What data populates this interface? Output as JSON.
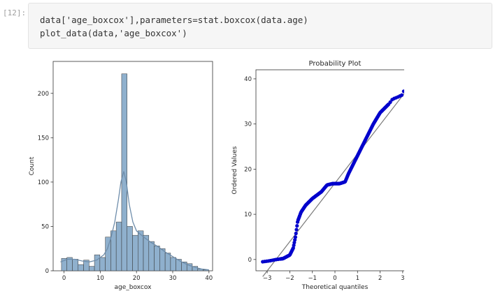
{
  "cell": {
    "prompt": "[12]:",
    "code_lines": [
      "data['age_boxcox'],parameters=stat.boxcox(data.age)",
      "plot_data(data,'age_boxcox')"
    ]
  },
  "colors": {
    "bar_fill": "#8fb0cd",
    "bar_edge": "#333333",
    "kde": "#6e8dab",
    "points": "#0000cc",
    "fit_line": "#7a7a7a"
  },
  "chart_data": [
    {
      "type": "bar",
      "title": "",
      "xlabel": "age_boxcox",
      "ylabel": "Count",
      "xlim": [
        -3,
        41
      ],
      "ylim": [
        0,
        236
      ],
      "xticks": [
        0,
        10,
        20,
        30,
        40
      ],
      "yticks": [
        0,
        50,
        100,
        150,
        200
      ],
      "bin_edges": [
        -0.7,
        0.8,
        2.3,
        3.9,
        5.4,
        6.9,
        8.4,
        9.9,
        11.4,
        12.9,
        14.4,
        15.9,
        17.4,
        18.9,
        20.4,
        21.9,
        23.4,
        24.9,
        26.4,
        27.9,
        29.4,
        30.9,
        32.4,
        33.9,
        35.4,
        36.9,
        38.4,
        39.9
      ],
      "counts": [
        14,
        15,
        13,
        7,
        12,
        5,
        18,
        15,
        38,
        45,
        55,
        222,
        50,
        40,
        45,
        40,
        33,
        28,
        25,
        20,
        15,
        13,
        10,
        8,
        5,
        2,
        1
      ],
      "kde": {
        "x": [
          -1,
          1,
          3,
          5,
          7,
          9,
          11,
          12,
          13,
          14,
          15,
          15.7,
          16.5,
          17.2,
          18,
          19,
          20,
          22,
          24,
          26,
          28,
          30,
          32,
          34,
          36,
          38,
          40
        ],
        "y": [
          10,
          13,
          13,
          11,
          10,
          12,
          18,
          25,
          38,
          55,
          80,
          100,
          112,
          100,
          75,
          55,
          45,
          38,
          32,
          27,
          21,
          16,
          11,
          7,
          4,
          2,
          1
        ]
      }
    },
    {
      "type": "scatter",
      "title": "Probability Plot",
      "xlabel": "Theoretical quantiles",
      "ylabel": "Ordered Values",
      "xlim": [
        -3.5,
        3.5
      ],
      "ylim": [
        -2.5,
        42
      ],
      "xticks": [
        -3,
        -2,
        -1,
        0,
        1,
        2,
        3
      ],
      "yticks": [
        0,
        10,
        20,
        30,
        40
      ],
      "fit_line": {
        "x": [
          -3.2,
          3.2
        ],
        "y": [
          -3.8,
          37.6
        ]
      },
      "curve": {
        "x": [
          -3.2,
          -2.9,
          -2.6,
          -2.3,
          -2.0,
          -1.85,
          -1.75,
          -1.65,
          -1.5,
          -1.3,
          -1.0,
          -0.6,
          -0.35,
          -0.1,
          0.2,
          0.45,
          0.6,
          0.8,
          1.1,
          1.4,
          1.7,
          2.0,
          2.2,
          2.4,
          2.55,
          2.8,
          3.0,
          3.2
        ],
        "y": [
          -0.5,
          -0.3,
          0.0,
          0.2,
          1.0,
          2.5,
          5.0,
          8.5,
          10.5,
          12.0,
          13.5,
          15.0,
          16.5,
          16.8,
          16.8,
          17.2,
          19.0,
          21.0,
          24.0,
          27.0,
          30.0,
          32.5,
          33.5,
          34.5,
          35.5,
          36.0,
          36.5,
          39.8
        ]
      }
    }
  ]
}
